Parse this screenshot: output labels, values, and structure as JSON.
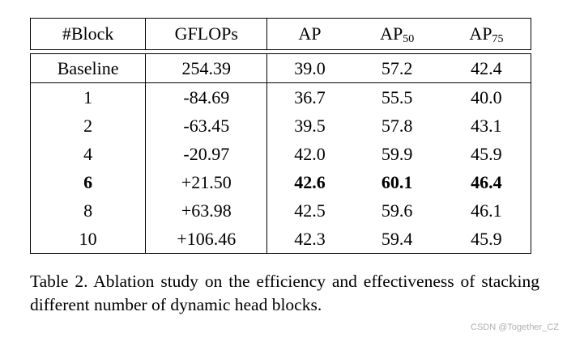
{
  "table": {
    "headers": {
      "block": "#Block",
      "gflops": "GFLOPs",
      "ap": "AP",
      "ap50_base": "AP",
      "ap50_sub": "50",
      "ap75_base": "AP",
      "ap75_sub": "75"
    },
    "baseline": [
      "Baseline",
      "254.39",
      "39.0",
      "57.2",
      "42.4"
    ],
    "rows": [
      [
        "1",
        "-84.69",
        "36.7",
        "55.5",
        "40.0"
      ],
      [
        "2",
        "-63.45",
        "39.5",
        "57.8",
        "43.1"
      ],
      [
        "4",
        "-20.97",
        "42.0",
        "59.9",
        "45.9"
      ],
      [
        "6",
        "+21.50",
        "42.6",
        "60.1",
        "46.4"
      ],
      [
        "8",
        "+63.98",
        "42.5",
        "59.6",
        "46.1"
      ],
      [
        "10",
        "+106.46",
        "42.3",
        "59.4",
        "45.9"
      ]
    ]
  },
  "caption": "Table 2. Ablation study on the efficiency and effectiveness of stacking different number of dynamic head blocks.",
  "watermark": "CSDN @Together_CZ"
}
